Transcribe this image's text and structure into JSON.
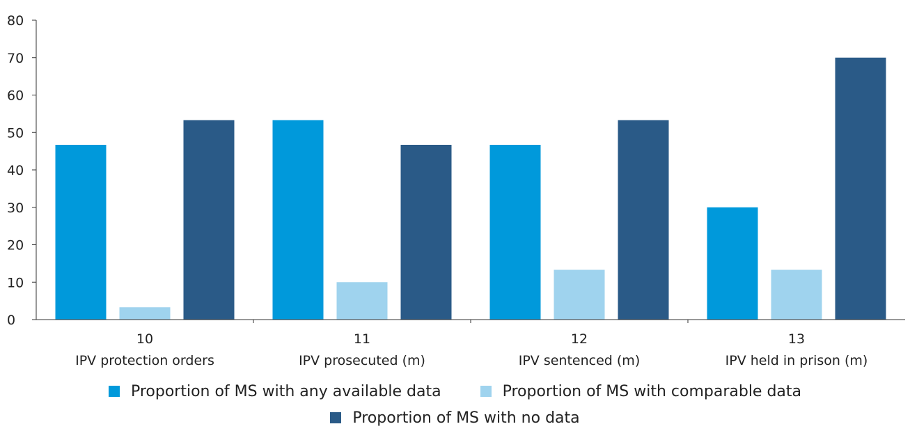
{
  "chart_data": {
    "type": "bar",
    "categories": [
      "10",
      "11",
      "12",
      "13"
    ],
    "category_sublabels": [
      "IPV protection orders",
      "IPV prosecuted (m)",
      "IPV sentenced (m)",
      "IPV held in prison (m)"
    ],
    "series": [
      {
        "name": "Proportion of MS with any available data",
        "color": "#0099DB",
        "values": [
          46.7,
          53.3,
          46.7,
          30.0
        ]
      },
      {
        "name": "Proportion of MS with comparable data",
        "color": "#9FD3EE",
        "values": [
          3.3,
          10.0,
          13.3,
          13.3
        ]
      },
      {
        "name": "Proportion of MS with no data",
        "color": "#2A5A87",
        "values": [
          53.3,
          46.7,
          53.3,
          70.0
        ]
      }
    ],
    "ylim": [
      0,
      80
    ],
    "yticks": [
      0,
      10,
      20,
      30,
      40,
      50,
      60,
      70,
      80
    ],
    "grid": false,
    "legend_position": "bottom"
  }
}
